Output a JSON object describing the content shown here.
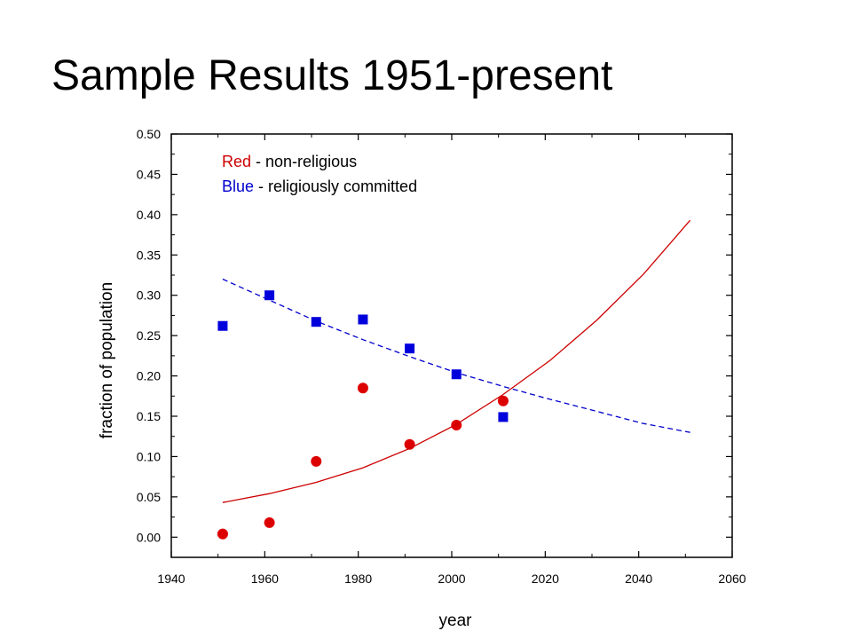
{
  "slide": {
    "title": "Sample Results 1951-present"
  },
  "chart_data": {
    "type": "scatter",
    "xlabel": "year",
    "ylabel": "fraction of population",
    "xlim": [
      1940,
      2060
    ],
    "ylim": [
      -0.025,
      0.5
    ],
    "xticks": [
      1940,
      1960,
      1980,
      2000,
      2020,
      2040,
      2060
    ],
    "yticks": [
      "0.00",
      "0.05",
      "0.10",
      "0.15",
      "0.20",
      "0.25",
      "0.30",
      "0.35",
      "0.40",
      "0.45",
      "0.50"
    ],
    "grid": false,
    "legend_placement": "top-left",
    "legend": [
      {
        "keyword": "Red",
        "text": " - non-religious",
        "color": "#cc0000"
      },
      {
        "keyword": "Blue",
        "text": " - religiously committed",
        "color": "#0000cc"
      }
    ],
    "series": [
      {
        "kind": "points",
        "marker": "circle",
        "color": "#dd0000",
        "x": [
          1951,
          1961,
          1971,
          1981,
          1991,
          2001,
          2011
        ],
        "y": [
          0.004,
          0.018,
          0.094,
          0.185,
          0.115,
          0.139,
          0.169
        ]
      },
      {
        "kind": "points",
        "marker": "square",
        "color": "#0000dd",
        "x": [
          1951,
          1961,
          1971,
          1981,
          1991,
          2001,
          2011
        ],
        "y": [
          0.262,
          0.3,
          0.267,
          0.27,
          0.234,
          0.202,
          0.149
        ]
      },
      {
        "kind": "line",
        "style": "solid",
        "color": "#cc0000",
        "x": [
          1951,
          1961,
          1971,
          1981,
          1991,
          2001,
          2011,
          2021,
          2031,
          2041,
          2051
        ],
        "y": [
          0.043,
          0.054,
          0.068,
          0.086,
          0.11,
          0.14,
          0.177,
          0.219,
          0.269,
          0.326,
          0.393
        ]
      },
      {
        "kind": "line",
        "style": "dashed",
        "color": "#0000cc",
        "x": [
          1951,
          1961,
          1971,
          1981,
          1991,
          2001,
          2011,
          2021,
          2031,
          2041,
          2051
        ],
        "y": [
          0.32,
          0.294,
          0.268,
          0.245,
          0.224,
          0.204,
          0.187,
          0.171,
          0.156,
          0.141,
          0.13
        ]
      }
    ]
  }
}
